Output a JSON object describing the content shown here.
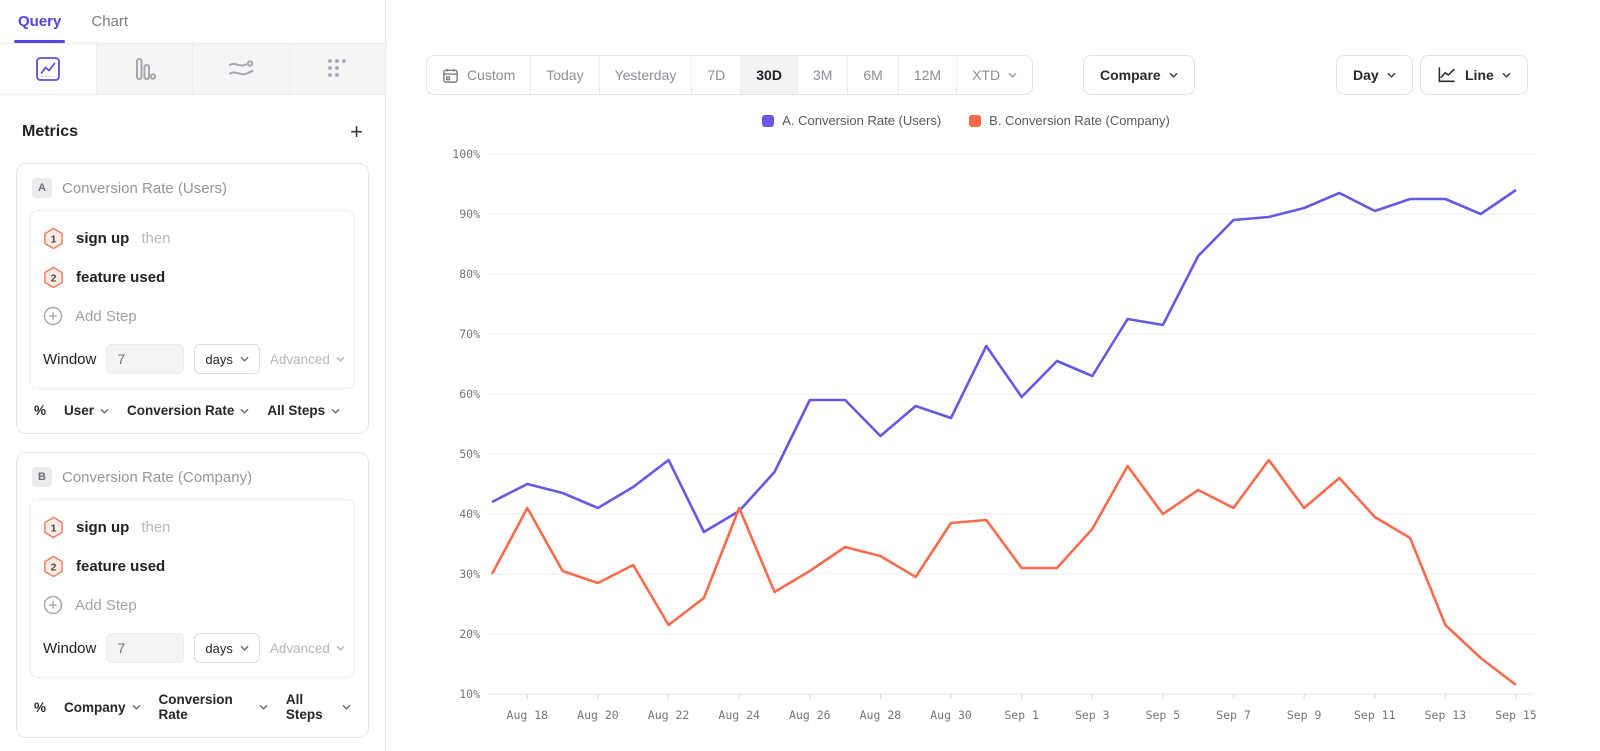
{
  "left_panel": {
    "tabs": {
      "query": "Query",
      "chart": "Chart"
    },
    "chart_type_tabs": [
      "insights-line",
      "bar",
      "flows",
      "retention"
    ],
    "metrics_title": "Metrics",
    "add_metric": "+",
    "cards": [
      {
        "badge": "A",
        "title": "Conversion Rate (Users)",
        "steps": [
          {
            "num": "1",
            "event": "sign up",
            "suffix": "then"
          },
          {
            "num": "2",
            "event": "feature used",
            "suffix": ""
          }
        ],
        "add_step": "Add Step",
        "window": {
          "label": "Window",
          "value": "7",
          "unit": "days",
          "advanced": "Advanced"
        },
        "measure": {
          "symbol": "%",
          "by": "User",
          "metric": "Conversion Rate",
          "scope": "All Steps"
        }
      },
      {
        "badge": "B",
        "title": "Conversion Rate (Company)",
        "steps": [
          {
            "num": "1",
            "event": "sign up",
            "suffix": "then"
          },
          {
            "num": "2",
            "event": "feature used",
            "suffix": ""
          }
        ],
        "add_step": "Add Step",
        "window": {
          "label": "Window",
          "value": "7",
          "unit": "days",
          "advanced": "Advanced"
        },
        "measure": {
          "symbol": "%",
          "by": "Company",
          "metric": "Conversion Rate",
          "scope": "All Steps"
        }
      }
    ]
  },
  "toolbar": {
    "date_ranges": [
      "Custom",
      "Today",
      "Yesterday",
      "7D",
      "30D",
      "3M",
      "6M",
      "12M",
      "XTD"
    ],
    "active_range": "30D",
    "compare_label": "Compare",
    "granularity_label": "Day",
    "chart_style_label": "Line"
  },
  "chart_data": {
    "type": "line",
    "title": "",
    "xlabel": "",
    "ylabel": "",
    "ylim": [
      10,
      100
    ],
    "yticks": [
      "100%",
      "90%",
      "80%",
      "70%",
      "60%",
      "50%",
      "40%",
      "30%",
      "20%",
      "10%"
    ],
    "grid": true,
    "legend_position": "top-center",
    "x": [
      "Aug 17",
      "Aug 18",
      "Aug 19",
      "Aug 20",
      "Aug 21",
      "Aug 22",
      "Aug 23",
      "Aug 24",
      "Aug 25",
      "Aug 26",
      "Aug 27",
      "Aug 28",
      "Aug 29",
      "Aug 30",
      "Aug 31",
      "Sep 1",
      "Sep 2",
      "Sep 3",
      "Sep 4",
      "Sep 5",
      "Sep 6",
      "Sep 7",
      "Sep 8",
      "Sep 9",
      "Sep 10",
      "Sep 11",
      "Sep 12",
      "Sep 13",
      "Sep 14",
      "Sep 15"
    ],
    "x_tick_every": 2,
    "series": [
      {
        "name": "A. Conversion Rate (Users)",
        "color": "#6758e8",
        "values": [
          42,
          45,
          43.5,
          41,
          44.5,
          49,
          37,
          40.5,
          47,
          59,
          59,
          53,
          58,
          56,
          68,
          59.5,
          65.5,
          63,
          72.5,
          71.5,
          83,
          89,
          89.5,
          91,
          93.5,
          90.5,
          92.5,
          92.5,
          90,
          94
        ]
      },
      {
        "name": "B. Conversion Rate (Company)",
        "color": "#fa6b4d",
        "values": [
          30,
          41,
          30.5,
          28.5,
          31.5,
          21.5,
          26,
          41,
          27,
          30.5,
          34.5,
          33,
          29.5,
          38.5,
          39,
          31,
          31,
          37.5,
          48,
          40,
          44,
          41,
          49,
          41,
          46,
          39.5,
          36,
          21.5,
          16,
          11.5
        ]
      }
    ]
  }
}
